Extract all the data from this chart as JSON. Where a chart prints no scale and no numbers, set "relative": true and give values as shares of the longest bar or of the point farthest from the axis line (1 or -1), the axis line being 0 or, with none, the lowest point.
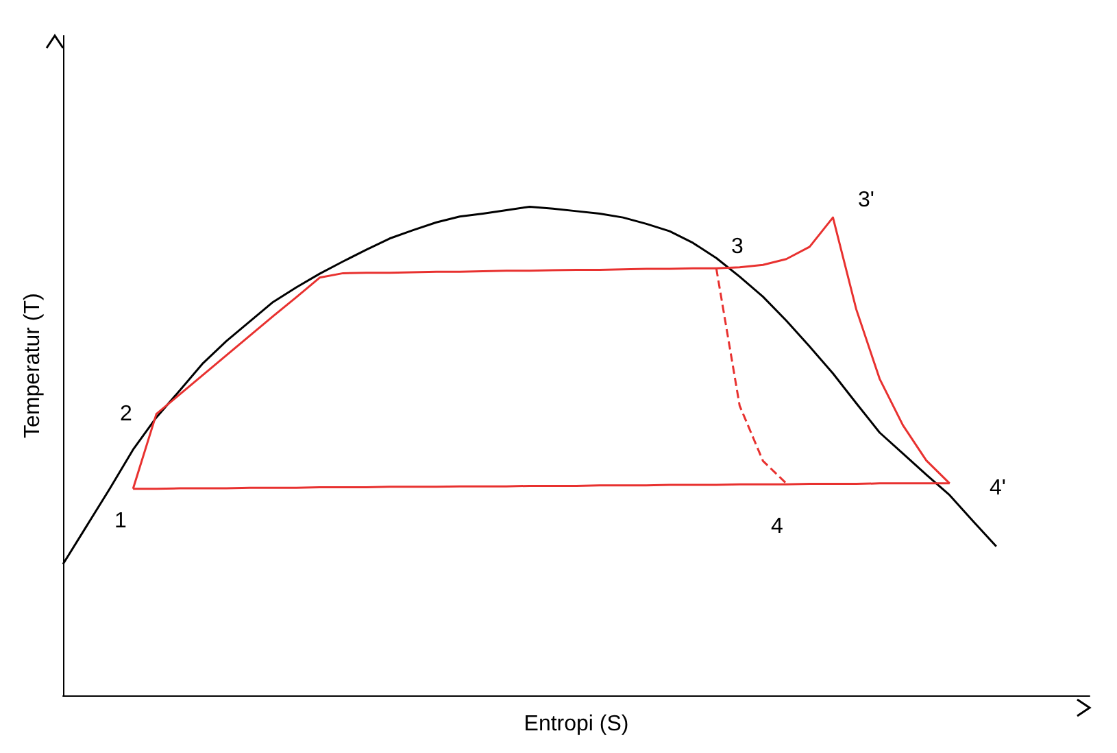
{
  "chart_data": {
    "type": "line",
    "relative": true,
    "xlabel": "Entropi (S)",
    "ylabel": "Temperatur (T)",
    "marker": "none",
    "categories": [
      null,
      null,
      null,
      null,
      null,
      null,
      null,
      null,
      null,
      null,
      null,
      null,
      null,
      null,
      null,
      null,
      null,
      null,
      null,
      null,
      null,
      null,
      null,
      null,
      null,
      null,
      null,
      null,
      null,
      null,
      null,
      null,
      null,
      null,
      null,
      null,
      null,
      null,
      null,
      null,
      null,
      null,
      null,
      null,
      null
    ],
    "series": [
      {
        "color": "#000000",
        "values": [
          0.269,
          0.346,
          0.423,
          0.503,
          0.569,
          0.624,
          0.68,
          0.725,
          0.765,
          0.805,
          0.835,
          0.863,
          0.888,
          0.912,
          0.935,
          0.952,
          0.968,
          0.98,
          0.986,
          0.993,
          1,
          0.996,
          0.991,
          0.986,
          0.978,
          0.965,
          0.95,
          0.926,
          0.895,
          0.857,
          0.816,
          0.767,
          0.714,
          0.659,
          0.598,
          0.538,
          0.495,
          0.452,
          0.41,
          0.357,
          0.305,
          null,
          null,
          null,
          null
        ]
      },
      {
        "color": "#e8312f",
        "values": [
          null,
          null,
          null,
          0.423,
          0.576,
          0.616,
          0.656,
          0.696,
          0.736,
          0.776,
          0.815,
          0.855,
          0.864,
          0.865,
          0.865,
          0.866,
          0.867,
          0.867,
          0.868,
          0.869,
          0.869,
          0.87,
          0.871,
          0.871,
          0.872,
          0.873,
          0.873,
          0.874,
          0.874,
          0.876,
          0.881,
          0.893,
          0.918,
          0.978,
          0.79,
          0.648,
          0.553,
          0.481,
          0.434,
          null,
          null,
          null,
          null,
          null,
          null
        ]
      },
      {
        "color": "#e8312f",
        "values": [
          null,
          null,
          null,
          0.423,
          0.423,
          0.424,
          0.424,
          0.424,
          0.425,
          0.425,
          0.425,
          0.426,
          0.426,
          0.426,
          0.427,
          0.427,
          0.427,
          0.428,
          0.428,
          0.428,
          0.429,
          0.429,
          0.429,
          0.43,
          0.43,
          0.43,
          0.431,
          0.431,
          0.431,
          0.432,
          0.432,
          0.432,
          0.433,
          0.433,
          0.433,
          0.434,
          0.434,
          0.434,
          0.434,
          null,
          null,
          null,
          null,
          null,
          null
        ]
      },
      {
        "color": "#e8312f",
        "line_style": "dashed",
        "values": [
          null,
          null,
          null,
          null,
          null,
          null,
          null,
          null,
          null,
          null,
          null,
          null,
          null,
          null,
          null,
          null,
          null,
          null,
          null,
          null,
          null,
          null,
          null,
          null,
          null,
          null,
          null,
          null,
          0.874,
          0.593,
          0.48,
          0.434,
          null,
          null,
          null,
          null,
          null,
          null,
          null,
          null,
          null,
          null,
          null,
          null,
          null
        ]
      }
    ],
    "annotations": [
      "1",
      "2",
      "3",
      "3'",
      "4",
      "4'"
    ]
  }
}
